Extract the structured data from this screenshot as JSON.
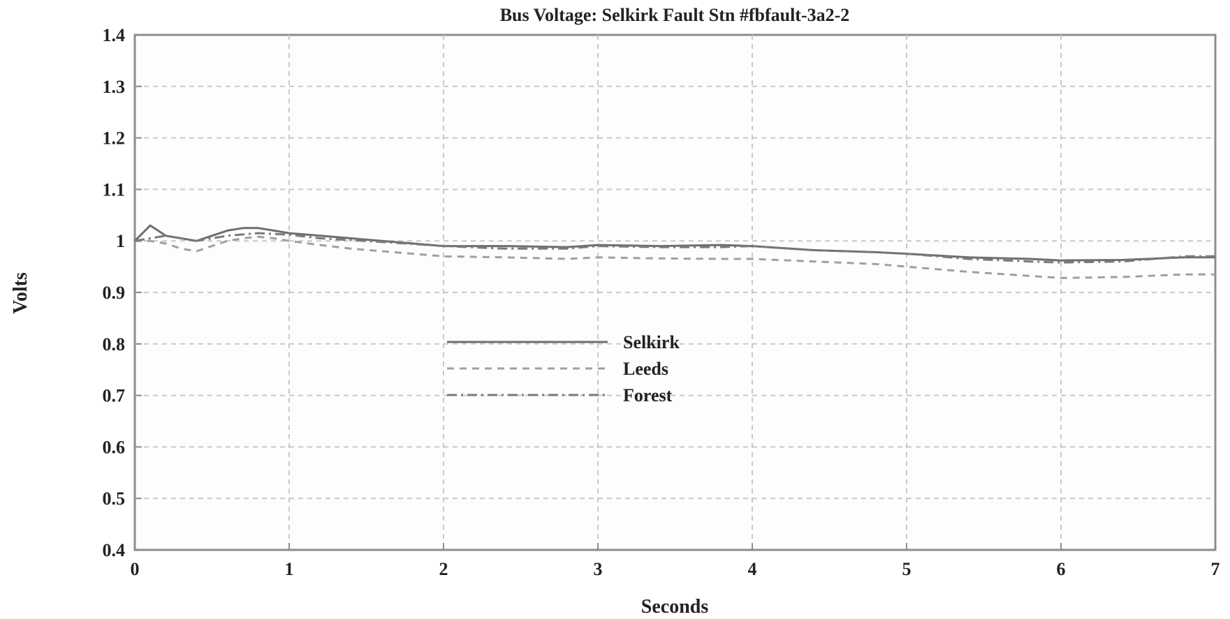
{
  "chart_data": {
    "type": "line",
    "title": "Bus Voltage: Selkirk Fault Stn #fbfault-3a2-2",
    "xlabel": "Seconds",
    "ylabel": "Volts",
    "xlim": [
      0,
      7
    ],
    "ylim": [
      0.4,
      1.4
    ],
    "xticks": [
      0,
      1,
      2,
      3,
      4,
      5,
      6,
      7
    ],
    "xtick_labels": [
      "0",
      "1",
      "2",
      "3",
      "4",
      "5",
      "6",
      "7"
    ],
    "yticks": [
      0.4,
      0.5,
      0.6,
      0.7,
      0.8,
      0.9,
      1.0,
      1.1,
      1.2,
      1.3,
      1.4
    ],
    "ytick_labels": [
      "0.4",
      "0.5",
      "0.6",
      "0.7",
      "0.8",
      "0.9",
      "1",
      "1.1",
      "1.2",
      "1.3",
      "1.4"
    ],
    "grid": true,
    "legend_position": "center",
    "series": [
      {
        "name": "Selkirk",
        "style": "solid",
        "color": "#6e6e6e",
        "x": [
          0,
          0.1,
          0.15,
          0.2,
          0.3,
          0.4,
          0.5,
          0.6,
          0.7,
          0.8,
          0.9,
          1.0,
          1.2,
          1.4,
          1.6,
          1.8,
          2.0,
          2.4,
          2.8,
          3.0,
          3.4,
          3.8,
          4.0,
          4.4,
          4.8,
          5.0,
          5.4,
          5.8,
          6.0,
          6.4,
          6.8,
          7.0
        ],
        "y": [
          1.0,
          1.03,
          1.02,
          1.01,
          1.005,
          1.0,
          1.01,
          1.02,
          1.025,
          1.025,
          1.02,
          1.015,
          1.01,
          1.005,
          1.0,
          0.995,
          0.99,
          0.99,
          0.988,
          0.992,
          0.99,
          0.992,
          0.99,
          0.982,
          0.978,
          0.975,
          0.968,
          0.965,
          0.962,
          0.963,
          0.968,
          0.968
        ]
      },
      {
        "name": "Leeds",
        "style": "dashed",
        "color": "#a0a0a0",
        "x": [
          0,
          0.1,
          0.2,
          0.3,
          0.4,
          0.5,
          0.6,
          0.7,
          0.8,
          0.9,
          1.0,
          1.2,
          1.4,
          1.6,
          1.8,
          2.0,
          2.4,
          2.8,
          3.0,
          3.4,
          3.8,
          4.0,
          4.4,
          4.8,
          5.0,
          5.4,
          5.8,
          6.0,
          6.4,
          6.8,
          7.0
        ],
        "y": [
          1.0,
          1.0,
          0.995,
          0.985,
          0.98,
          0.99,
          1.0,
          1.005,
          1.008,
          1.005,
          1.0,
          0.992,
          0.985,
          0.98,
          0.975,
          0.97,
          0.968,
          0.965,
          0.968,
          0.966,
          0.965,
          0.965,
          0.96,
          0.955,
          0.95,
          0.94,
          0.932,
          0.928,
          0.93,
          0.935,
          0.935
        ]
      },
      {
        "name": "Forest",
        "style": "dashdot",
        "color": "#7a7a7a",
        "x": [
          0,
          0.2,
          0.4,
          0.6,
          0.8,
          1.0,
          1.2,
          1.6,
          2.0,
          2.4,
          2.8,
          3.0,
          3.4,
          3.8,
          4.0,
          4.4,
          4.8,
          5.0,
          5.4,
          5.8,
          6.0,
          6.4,
          6.8,
          7.0
        ],
        "y": [
          1.0,
          1.01,
          1.0,
          1.01,
          1.015,
          1.012,
          1.005,
          0.998,
          0.99,
          0.985,
          0.985,
          0.99,
          0.988,
          0.988,
          0.99,
          0.982,
          0.978,
          0.975,
          0.965,
          0.96,
          0.958,
          0.96,
          0.97,
          0.97
        ]
      }
    ]
  }
}
